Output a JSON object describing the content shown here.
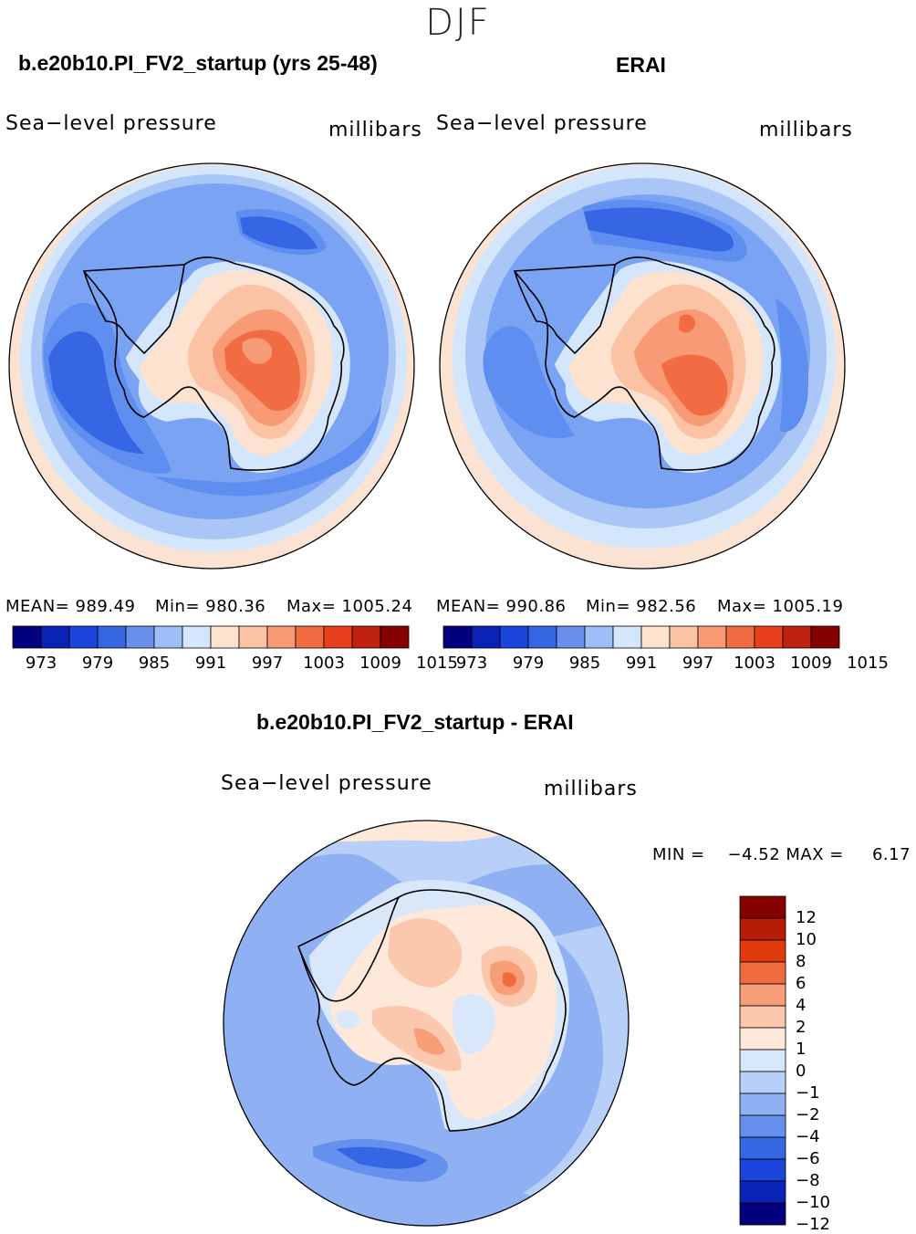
{
  "season": "DJF",
  "panels": [
    {
      "title": "b.e20b10.PI_FV2_startup (yrs 25-48)",
      "variable": "Sea−level pressure",
      "units": "millibars",
      "stats": {
        "mean_label": "MEAN= 989.49",
        "min_label": "Min= 980.36",
        "max_label": "Max= 1005.24"
      },
      "colorbar_ticks": [
        "973",
        "979",
        "985",
        "991",
        "997",
        "1003",
        "1009",
        "1015"
      ]
    },
    {
      "title": "ERAI",
      "variable": "Sea−level pressure",
      "units": "millibars",
      "stats": {
        "mean_label": "MEAN= 990.86",
        "min_label": "Min= 982.56",
        "max_label": "Max= 1005.19"
      },
      "colorbar_ticks": [
        "973",
        "979",
        "985",
        "991",
        "997",
        "1003",
        "1009",
        "1015"
      ]
    },
    {
      "title": "b.e20b10.PI_FV2_startup - ERAI",
      "variable": "Sea−level pressure",
      "units": "millibars",
      "stats_label": "MIN =    −4.52 MAX =     6.17",
      "colorbar_ticks": [
        "12",
        "10",
        "8",
        "6",
        "4",
        "2",
        "1",
        "0",
        "−1",
        "−2",
        "−4",
        "−6",
        "−8",
        "−10",
        "−12"
      ]
    }
  ],
  "colors": {
    "abs_scale": [
      "#03007f",
      "#0a22b5",
      "#1b44db",
      "#3766e4",
      "#6a90ee",
      "#9fbdf6",
      "#d4e6fb",
      "#fde2d0",
      "#fbc2a4",
      "#f79a75",
      "#f26c43",
      "#e8401d",
      "#c0200e",
      "#850200"
    ],
    "diff_scale": [
      "#850200",
      "#b51d05",
      "#e03a0c",
      "#f26b3e",
      "#f79d78",
      "#fbc8ad",
      "#fde8da",
      "#d9e7fb",
      "#b8cff8",
      "#8fb0f2",
      "#6590ee",
      "#3566e4",
      "#1b44db",
      "#0a22b5",
      "#03007f"
    ],
    "ocean_a": "#5d8ef0",
    "ocean_b": "#7aa3f4",
    "ocean_c": "#a9c6f7",
    "rim": "#fbe3d3",
    "coast": "#000000"
  }
}
